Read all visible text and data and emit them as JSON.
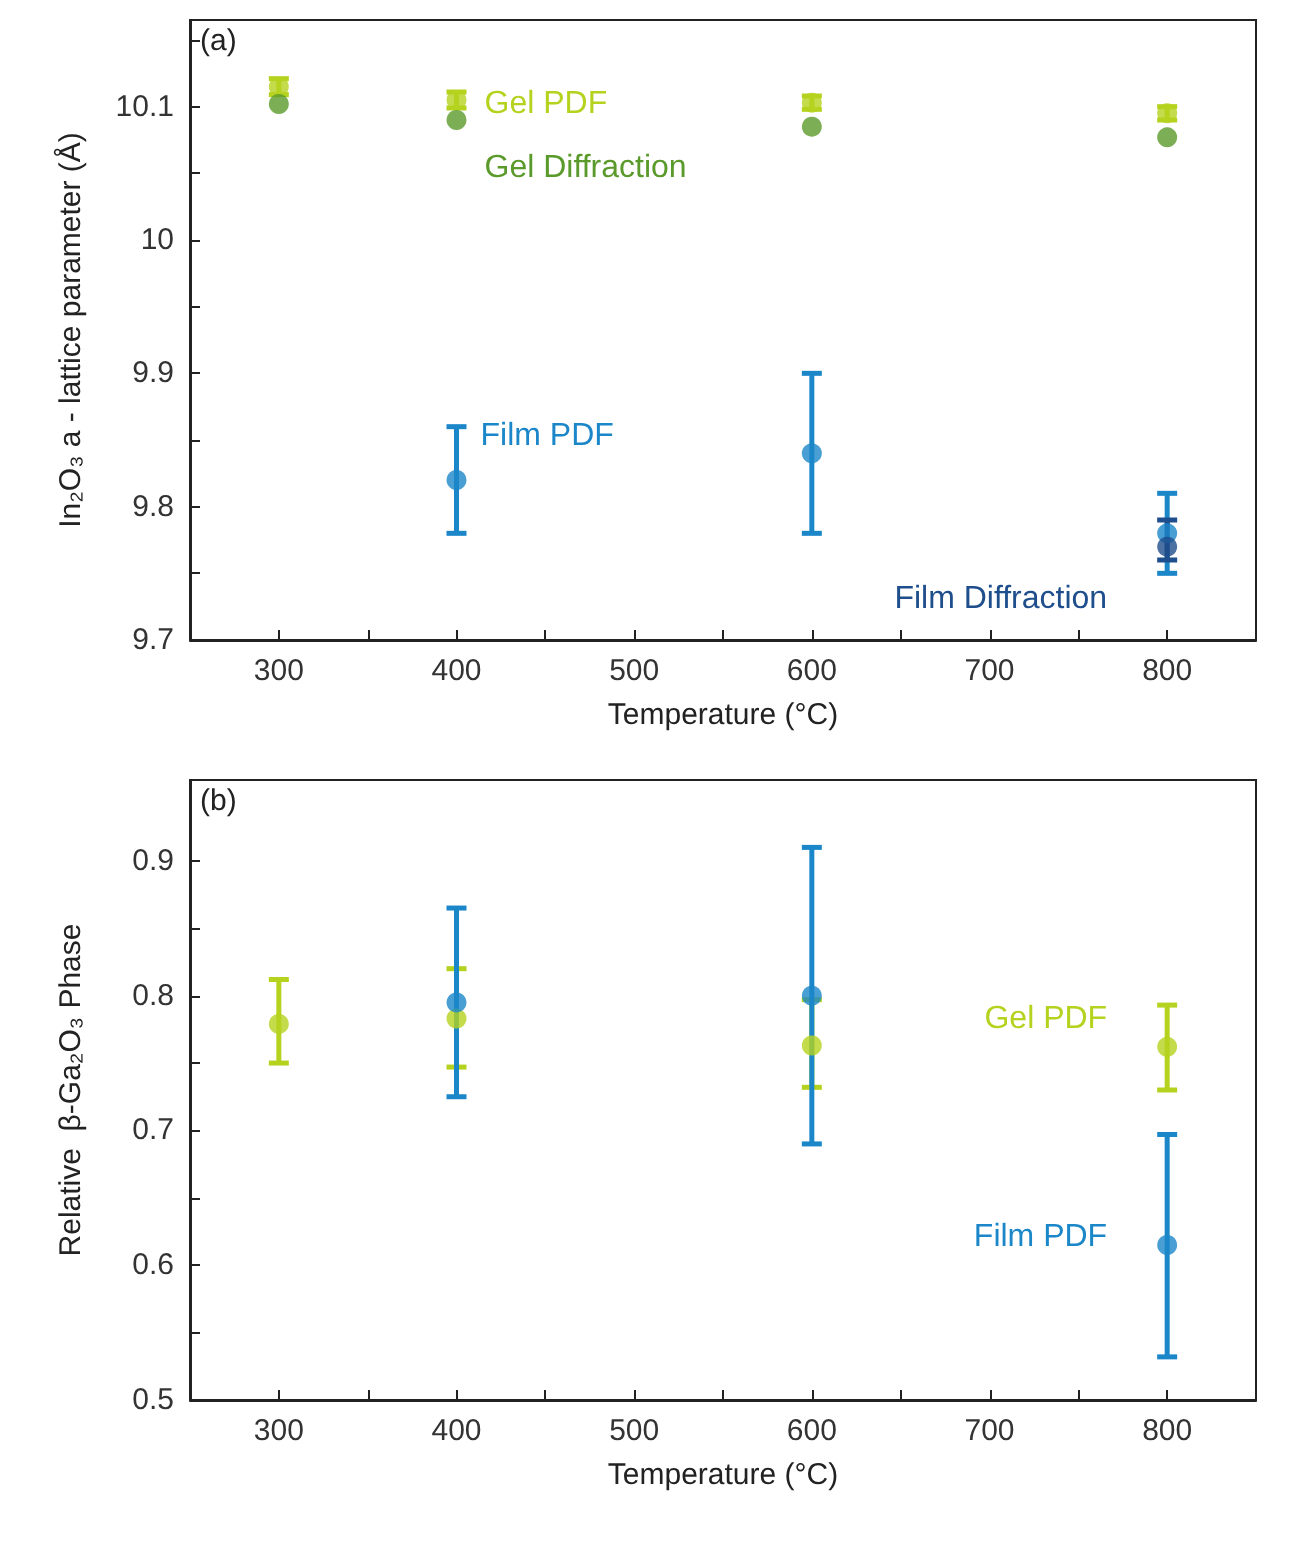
{
  "chart_data": [
    {
      "type": "scatter",
      "annotations": [
        "(a)"
      ],
      "xlabel": "Temperature (°C)",
      "ylabel": "In₂O₃ a - lattice parameter (Å)",
      "xlim": [
        250,
        850
      ],
      "xticks": [
        300,
        {
          "value": 350,
          "label": null
        },
        400,
        {
          "value": 450,
          "label": null
        },
        500,
        {
          "value": 550,
          "label": null
        },
        600,
        {
          "value": 650,
          "label": null
        },
        700,
        {
          "value": 750,
          "label": null
        },
        800
      ],
      "ylim": [
        9.7,
        10.165
      ],
      "yticks": [
        9.7,
        {
          "value": 9.75,
          "label": null
        },
        9.8,
        {
          "value": 9.85,
          "label": null
        },
        9.9,
        {
          "value": 9.95,
          "label": null
        },
        10,
        {
          "value": 10.05,
          "label": null
        },
        10.1,
        {
          "value": 10.15,
          "label": null
        }
      ],
      "grid": false,
      "legend": false,
      "marker": "circle",
      "series": [
        {
          "name": "Gel PDF",
          "color": "#b5d21e",
          "x": [
            300,
            400,
            600,
            800
          ],
          "values": [
            10.115,
            10.105,
            10.103,
            10.095
          ],
          "errors": [
            0.006,
            0.006,
            0.005,
            0.005
          ]
        },
        {
          "name": "Gel Diffraction",
          "color": "#5a9a2a",
          "x": [
            300,
            400,
            600,
            800
          ],
          "values": [
            10.102,
            10.09,
            10.085,
            10.077
          ]
        },
        {
          "name": "Film PDF",
          "color": "#1b87c9",
          "x": [
            400,
            600,
            800
          ],
          "values": [
            9.82,
            9.84,
            9.78
          ],
          "errors": [
            [
              9.78,
              9.86
            ],
            [
              9.78,
              9.9
            ],
            [
              9.75,
              9.81
            ]
          ]
        },
        {
          "name": "Film Diffraction",
          "color": "#1f4e8c",
          "x": [
            800
          ],
          "values": [
            9.77
          ],
          "errors": [
            [
              9.76,
              9.79
            ]
          ]
        }
      ]
    },
    {
      "type": "scatter",
      "annotations": [
        "(b)"
      ],
      "xlabel": "Temperature (°C)",
      "ylabel": "Relative  β-Ga₂O₃ Phase",
      "xlim": [
        250,
        850
      ],
      "xticks": [
        300,
        {
          "value": 350,
          "label": null
        },
        400,
        {
          "value": 450,
          "label": null
        },
        500,
        {
          "value": 550,
          "label": null
        },
        600,
        {
          "value": 650,
          "label": null
        },
        700,
        {
          "value": 750,
          "label": null
        },
        800
      ],
      "ylim": [
        0.5,
        0.96
      ],
      "yticks": [
        0.5,
        {
          "value": 0.55,
          "label": null
        },
        0.6,
        {
          "value": 0.65,
          "label": null
        },
        0.7,
        {
          "value": 0.75,
          "label": null
        },
        0.8,
        {
          "value": 0.85,
          "label": null
        },
        0.9
      ],
      "grid": false,
      "legend": false,
      "marker": "circle",
      "series": [
        {
          "name": "Gel PDF",
          "color": "#b5d21e",
          "x": [
            300,
            400,
            600,
            800
          ],
          "values": [
            0.779,
            0.783,
            0.763,
            0.762
          ],
          "errors": [
            [
              0.75,
              0.812
            ],
            [
              0.747,
              0.82
            ],
            [
              0.732,
              0.797
            ],
            [
              0.73,
              0.793
            ]
          ]
        },
        {
          "name": "Film PDF",
          "color": "#1b87c9",
          "x": [
            400,
            600,
            800
          ],
          "values": [
            0.795,
            0.8,
            0.615
          ],
          "errors": [
            [
              0.725,
              0.865
            ],
            [
              0.69,
              0.91
            ],
            [
              0.532,
              0.697
            ]
          ]
        }
      ]
    }
  ]
}
